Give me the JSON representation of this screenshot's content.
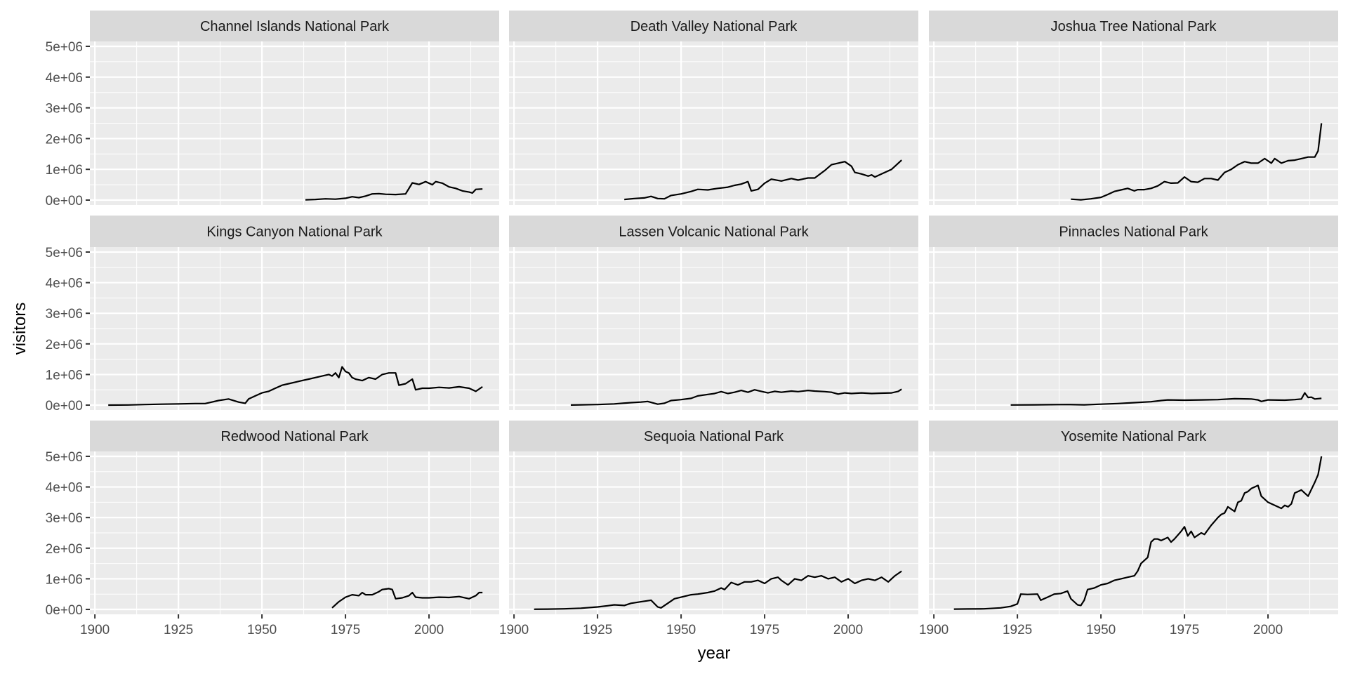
{
  "chart_data": {
    "type": "line",
    "title": "",
    "xlabel": "year",
    "ylabel": "visitors",
    "xlim": [
      1898.5,
      2021
    ],
    "ylim": [
      -160000,
      5160000
    ],
    "x_ticks": [
      1900,
      1925,
      1950,
      1975,
      2000
    ],
    "x_tick_labels": [
      "1900",
      "1925",
      "1950",
      "1975",
      "2000"
    ],
    "y_ticks": [
      0,
      1000000,
      2000000,
      3000000,
      4000000,
      5000000
    ],
    "y_tick_labels": [
      "0e+00",
      "1e+06",
      "2e+06",
      "3e+06",
      "4e+06",
      "5e+06"
    ],
    "grid": true,
    "facet_layout": {
      "rows": 3,
      "cols": 3
    },
    "panels": [
      {
        "name": "Channel Islands National Park",
        "x": [
          1963,
          1966,
          1969,
          1972,
          1975,
          1977,
          1979,
          1981,
          1983,
          1985,
          1987,
          1990,
          1993,
          1995,
          1997,
          1999,
          2001,
          2002,
          2004,
          2006,
          2008,
          2010,
          2012,
          2013,
          2014,
          2016
        ],
        "y": [
          10000,
          20000,
          40000,
          30000,
          60000,
          110000,
          80000,
          130000,
          200000,
          210000,
          190000,
          180000,
          200000,
          560000,
          510000,
          600000,
          500000,
          600000,
          550000,
          430000,
          380000,
          300000,
          260000,
          230000,
          350000,
          360000
        ]
      },
      {
        "name": "Death Valley National Park",
        "x": [
          1933,
          1936,
          1939,
          1941,
          1943,
          1945,
          1947,
          1950,
          1953,
          1955,
          1958,
          1961,
          1964,
          1966,
          1968,
          1970,
          1971,
          1973,
          1975,
          1977,
          1980,
          1983,
          1985,
          1988,
          1990,
          1993,
          1995,
          1997,
          1999,
          2001,
          2002,
          2004,
          2006,
          2007,
          2008,
          2010,
          2012,
          2013,
          2014,
          2016
        ],
        "y": [
          20000,
          50000,
          70000,
          120000,
          50000,
          40000,
          150000,
          200000,
          280000,
          350000,
          330000,
          380000,
          420000,
          480000,
          520000,
          600000,
          300000,
          350000,
          550000,
          680000,
          620000,
          700000,
          650000,
          720000,
          720000,
          960000,
          1150000,
          1200000,
          1250000,
          1100000,
          900000,
          850000,
          780000,
          820000,
          750000,
          850000,
          950000,
          1000000,
          1100000,
          1300000
        ]
      },
      {
        "name": "Joshua Tree National Park",
        "x": [
          1941,
          1944,
          1947,
          1950,
          1952,
          1954,
          1956,
          1958,
          1960,
          1961,
          1963,
          1965,
          1967,
          1969,
          1971,
          1973,
          1975,
          1977,
          1979,
          1981,
          1983,
          1985,
          1987,
          1989,
          1991,
          1993,
          1995,
          1997,
          1999,
          2001,
          2002,
          2004,
          2006,
          2008,
          2010,
          2012,
          2014,
          2015,
          2016
        ],
        "y": [
          30000,
          10000,
          40000,
          90000,
          180000,
          280000,
          330000,
          380000,
          300000,
          340000,
          340000,
          380000,
          460000,
          600000,
          550000,
          560000,
          750000,
          600000,
          580000,
          700000,
          700000,
          650000,
          900000,
          1000000,
          1150000,
          1250000,
          1200000,
          1200000,
          1350000,
          1200000,
          1350000,
          1200000,
          1280000,
          1300000,
          1350000,
          1400000,
          1400000,
          1600000,
          2500000
        ]
      },
      {
        "name": "Kings Canyon National Park",
        "x": [
          1904,
          1910,
          1915,
          1920,
          1925,
          1930,
          1933,
          1935,
          1937,
          1940,
          1943,
          1945,
          1946,
          1948,
          1950,
          1952,
          1954,
          1956,
          1958,
          1960,
          1962,
          1964,
          1966,
          1968,
          1970,
          1971,
          1972,
          1973,
          1974,
          1975,
          1976,
          1977,
          1978,
          1980,
          1982,
          1984,
          1986,
          1988,
          1990,
          1991,
          1993,
          1995,
          1996,
          1998,
          2000,
          2003,
          2006,
          2009,
          2012,
          2014,
          2016
        ],
        "y": [
          0,
          5000,
          20000,
          30000,
          40000,
          50000,
          50000,
          100000,
          150000,
          200000,
          100000,
          60000,
          200000,
          300000,
          400000,
          450000,
          550000,
          650000,
          700000,
          750000,
          800000,
          850000,
          900000,
          950000,
          1000000,
          950000,
          1050000,
          900000,
          1250000,
          1100000,
          1050000,
          900000,
          850000,
          800000,
          900000,
          850000,
          1000000,
          1050000,
          1050000,
          650000,
          700000,
          850000,
          500000,
          550000,
          550000,
          580000,
          560000,
          600000,
          550000,
          450000,
          600000
        ]
      },
      {
        "name": "Lassen Volcanic National Park",
        "x": [
          1917,
          1920,
          1925,
          1930,
          1935,
          1938,
          1940,
          1943,
          1945,
          1947,
          1950,
          1953,
          1955,
          1958,
          1960,
          1962,
          1964,
          1966,
          1968,
          1970,
          1972,
          1974,
          1976,
          1978,
          1980,
          1983,
          1985,
          1988,
          1990,
          1993,
          1995,
          1997,
          1999,
          2001,
          2004,
          2007,
          2010,
          2013,
          2015,
          2016
        ],
        "y": [
          2000,
          10000,
          20000,
          40000,
          80000,
          100000,
          120000,
          30000,
          60000,
          150000,
          180000,
          220000,
          300000,
          350000,
          380000,
          440000,
          380000,
          420000,
          480000,
          420000,
          500000,
          450000,
          400000,
          450000,
          420000,
          460000,
          440000,
          480000,
          460000,
          440000,
          420000,
          360000,
          400000,
          380000,
          400000,
          380000,
          390000,
          400000,
          450000,
          520000
        ]
      },
      {
        "name": "Pinnacles National Park",
        "x": [
          1923,
          1930,
          1935,
          1940,
          1945,
          1950,
          1955,
          1960,
          1965,
          1968,
          1970,
          1975,
          1980,
          1985,
          1990,
          1995,
          1997,
          1998,
          2000,
          2005,
          2008,
          2010,
          2011,
          2012,
          2013,
          2014,
          2016
        ],
        "y": [
          5000,
          10000,
          15000,
          20000,
          10000,
          30000,
          50000,
          80000,
          110000,
          150000,
          170000,
          160000,
          170000,
          180000,
          210000,
          200000,
          170000,
          120000,
          170000,
          160000,
          180000,
          200000,
          400000,
          250000,
          260000,
          200000,
          220000
        ]
      },
      {
        "name": "Redwood National Park",
        "x": [
          1971,
          1973,
          1975,
          1977,
          1979,
          1980,
          1981,
          1983,
          1985,
          1986,
          1988,
          1989,
          1990,
          1992,
          1994,
          1995,
          1996,
          1998,
          2000,
          2003,
          2006,
          2009,
          2012,
          2014,
          2015,
          2016
        ],
        "y": [
          50000,
          250000,
          400000,
          480000,
          450000,
          550000,
          480000,
          480000,
          580000,
          650000,
          680000,
          650000,
          350000,
          380000,
          450000,
          550000,
          400000,
          380000,
          380000,
          400000,
          390000,
          420000,
          350000,
          450000,
          550000,
          550000
        ]
      },
      {
        "name": "Sequoia National Park",
        "x": [
          1906,
          1910,
          1915,
          1920,
          1925,
          1928,
          1930,
          1933,
          1935,
          1938,
          1941,
          1943,
          1944,
          1946,
          1948,
          1950,
          1953,
          1955,
          1958,
          1960,
          1962,
          1963,
          1965,
          1967,
          1969,
          1971,
          1973,
          1975,
          1977,
          1979,
          1980,
          1982,
          1984,
          1986,
          1988,
          1990,
          1992,
          1994,
          1996,
          1998,
          2000,
          2002,
          2004,
          2006,
          2008,
          2010,
          2012,
          2013,
          2014,
          2016
        ],
        "y": [
          5000,
          10000,
          20000,
          40000,
          80000,
          120000,
          150000,
          130000,
          200000,
          250000,
          300000,
          80000,
          50000,
          200000,
          350000,
          400000,
          480000,
          500000,
          550000,
          600000,
          700000,
          650000,
          880000,
          800000,
          900000,
          900000,
          950000,
          850000,
          1000000,
          1050000,
          950000,
          800000,
          1000000,
          950000,
          1100000,
          1050000,
          1100000,
          1000000,
          1050000,
          900000,
          1000000,
          850000,
          950000,
          1000000,
          950000,
          1050000,
          900000,
          1000000,
          1100000,
          1250000
        ]
      },
      {
        "name": "Yosemite National Park",
        "x": [
          1906,
          1910,
          1915,
          1920,
          1923,
          1925,
          1926,
          1928,
          1931,
          1932,
          1934,
          1936,
          1938,
          1940,
          1941,
          1943,
          1944,
          1945,
          1946,
          1948,
          1950,
          1952,
          1954,
          1956,
          1958,
          1960,
          1961,
          1962,
          1964,
          1965,
          1966,
          1967,
          1968,
          1970,
          1971,
          1972,
          1974,
          1975,
          1976,
          1977,
          1978,
          1980,
          1981,
          1983,
          1985,
          1986,
          1987,
          1988,
          1990,
          1991,
          1992,
          1993,
          1994,
          1995,
          1996,
          1997,
          1998,
          2000,
          2002,
          2004,
          2005,
          2006,
          2007,
          2008,
          2010,
          2012,
          2014,
          2015,
          2016
        ],
        "y": [
          10000,
          15000,
          20000,
          50000,
          100000,
          180000,
          500000,
          490000,
          500000,
          300000,
          400000,
          500000,
          520000,
          600000,
          350000,
          150000,
          130000,
          300000,
          650000,
          700000,
          800000,
          850000,
          950000,
          1000000,
          1050000,
          1100000,
          1250000,
          1500000,
          1700000,
          2200000,
          2300000,
          2300000,
          2250000,
          2350000,
          2200000,
          2300000,
          2550000,
          2700000,
          2400000,
          2550000,
          2350000,
          2500000,
          2450000,
          2750000,
          3000000,
          3100000,
          3150000,
          3350000,
          3200000,
          3500000,
          3550000,
          3800000,
          3850000,
          3950000,
          4000000,
          4050000,
          3700000,
          3500000,
          3400000,
          3300000,
          3400000,
          3350000,
          3450000,
          3800000,
          3900000,
          3700000,
          4150000,
          4400000,
          5000000
        ]
      }
    ]
  }
}
